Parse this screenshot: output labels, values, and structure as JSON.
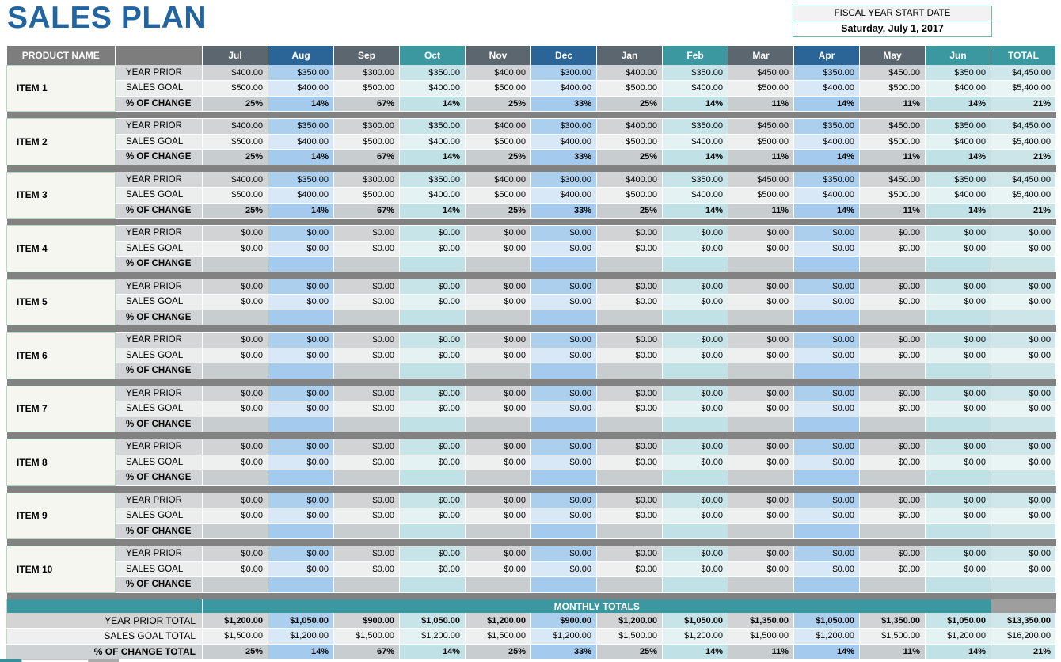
{
  "page": {
    "title": "SALES PLAN"
  },
  "fiscal": {
    "label": "FISCAL YEAR START DATE",
    "value": "Saturday, July 1, 2017"
  },
  "colors": {
    "title_blue": "#2164a0",
    "header_slate": "#5c666e",
    "header_blue": "#2b6496",
    "header_teal": "#3b98a1",
    "header_product_gray": "#7d7d7d",
    "separator_gray": "#828282",
    "band_teal": "#3b98a1",
    "fiscal_border_green": "#66bca9",
    "column_blue_tint": "#accfee",
    "column_cyan_tint": "#c7e4e9",
    "column_gray_tint": "#d1d3d5"
  },
  "table": {
    "product_header": "PRODUCT NAME",
    "row_labels": {
      "year_prior": "YEAR PRIOR",
      "sales_goal": "SALES GOAL",
      "pct_change": "% OF CHANGE"
    },
    "columns": [
      {
        "label": "Jul",
        "family": "gray"
      },
      {
        "label": "Aug",
        "family": "blue"
      },
      {
        "label": "Sep",
        "family": "gray"
      },
      {
        "label": "Oct",
        "family": "cyan"
      },
      {
        "label": "Nov",
        "family": "gray"
      },
      {
        "label": "Dec",
        "family": "blue"
      },
      {
        "label": "Jan",
        "family": "gray"
      },
      {
        "label": "Feb",
        "family": "cyan"
      },
      {
        "label": "Mar",
        "family": "gray"
      },
      {
        "label": "Apr",
        "family": "blue"
      },
      {
        "label": "May",
        "family": "gray"
      },
      {
        "label": "Jun",
        "family": "cyan"
      },
      {
        "label": "TOTAL",
        "family": "total"
      }
    ],
    "items": [
      {
        "name": "ITEM 1",
        "year_prior": [
          "$400.00",
          "$350.00",
          "$300.00",
          "$350.00",
          "$400.00",
          "$300.00",
          "$400.00",
          "$350.00",
          "$450.00",
          "$350.00",
          "$450.00",
          "$350.00",
          "$4,450.00"
        ],
        "sales_goal": [
          "$500.00",
          "$400.00",
          "$500.00",
          "$400.00",
          "$500.00",
          "$400.00",
          "$500.00",
          "$400.00",
          "$500.00",
          "$400.00",
          "$500.00",
          "$400.00",
          "$5,400.00"
        ],
        "pct_change": [
          "25%",
          "14%",
          "67%",
          "14%",
          "25%",
          "33%",
          "25%",
          "14%",
          "11%",
          "14%",
          "11%",
          "14%",
          "21%"
        ]
      },
      {
        "name": "ITEM 2",
        "year_prior": [
          "$400.00",
          "$350.00",
          "$300.00",
          "$350.00",
          "$400.00",
          "$300.00",
          "$400.00",
          "$350.00",
          "$450.00",
          "$350.00",
          "$450.00",
          "$350.00",
          "$4,450.00"
        ],
        "sales_goal": [
          "$500.00",
          "$400.00",
          "$500.00",
          "$400.00",
          "$500.00",
          "$400.00",
          "$500.00",
          "$400.00",
          "$500.00",
          "$400.00",
          "$500.00",
          "$400.00",
          "$5,400.00"
        ],
        "pct_change": [
          "25%",
          "14%",
          "67%",
          "14%",
          "25%",
          "33%",
          "25%",
          "14%",
          "11%",
          "14%",
          "11%",
          "14%",
          "21%"
        ]
      },
      {
        "name": "ITEM 3",
        "year_prior": [
          "$400.00",
          "$350.00",
          "$300.00",
          "$350.00",
          "$400.00",
          "$300.00",
          "$400.00",
          "$350.00",
          "$450.00",
          "$350.00",
          "$450.00",
          "$350.00",
          "$4,450.00"
        ],
        "sales_goal": [
          "$500.00",
          "$400.00",
          "$500.00",
          "$400.00",
          "$500.00",
          "$400.00",
          "$500.00",
          "$400.00",
          "$500.00",
          "$400.00",
          "$500.00",
          "$400.00",
          "$5,400.00"
        ],
        "pct_change": [
          "25%",
          "14%",
          "67%",
          "14%",
          "25%",
          "33%",
          "25%",
          "14%",
          "11%",
          "14%",
          "11%",
          "14%",
          "21%"
        ]
      },
      {
        "name": "ITEM 4",
        "year_prior": [
          "$0.00",
          "$0.00",
          "$0.00",
          "$0.00",
          "$0.00",
          "$0.00",
          "$0.00",
          "$0.00",
          "$0.00",
          "$0.00",
          "$0.00",
          "$0.00",
          "$0.00"
        ],
        "sales_goal": [
          "$0.00",
          "$0.00",
          "$0.00",
          "$0.00",
          "$0.00",
          "$0.00",
          "$0.00",
          "$0.00",
          "$0.00",
          "$0.00",
          "$0.00",
          "$0.00",
          "$0.00"
        ],
        "pct_change": [
          "",
          "",
          "",
          "",
          "",
          "",
          "",
          "",
          "",
          "",
          "",
          "",
          ""
        ]
      },
      {
        "name": "ITEM 5",
        "year_prior": [
          "$0.00",
          "$0.00",
          "$0.00",
          "$0.00",
          "$0.00",
          "$0.00",
          "$0.00",
          "$0.00",
          "$0.00",
          "$0.00",
          "$0.00",
          "$0.00",
          "$0.00"
        ],
        "sales_goal": [
          "$0.00",
          "$0.00",
          "$0.00",
          "$0.00",
          "$0.00",
          "$0.00",
          "$0.00",
          "$0.00",
          "$0.00",
          "$0.00",
          "$0.00",
          "$0.00",
          "$0.00"
        ],
        "pct_change": [
          "",
          "",
          "",
          "",
          "",
          "",
          "",
          "",
          "",
          "",
          "",
          "",
          ""
        ]
      },
      {
        "name": "ITEM 6",
        "year_prior": [
          "$0.00",
          "$0.00",
          "$0.00",
          "$0.00",
          "$0.00",
          "$0.00",
          "$0.00",
          "$0.00",
          "$0.00",
          "$0.00",
          "$0.00",
          "$0.00",
          "$0.00"
        ],
        "sales_goal": [
          "$0.00",
          "$0.00",
          "$0.00",
          "$0.00",
          "$0.00",
          "$0.00",
          "$0.00",
          "$0.00",
          "$0.00",
          "$0.00",
          "$0.00",
          "$0.00",
          "$0.00"
        ],
        "pct_change": [
          "",
          "",
          "",
          "",
          "",
          "",
          "",
          "",
          "",
          "",
          "",
          "",
          ""
        ]
      },
      {
        "name": "ITEM 7",
        "year_prior": [
          "$0.00",
          "$0.00",
          "$0.00",
          "$0.00",
          "$0.00",
          "$0.00",
          "$0.00",
          "$0.00",
          "$0.00",
          "$0.00",
          "$0.00",
          "$0.00",
          "$0.00"
        ],
        "sales_goal": [
          "$0.00",
          "$0.00",
          "$0.00",
          "$0.00",
          "$0.00",
          "$0.00",
          "$0.00",
          "$0.00",
          "$0.00",
          "$0.00",
          "$0.00",
          "$0.00",
          "$0.00"
        ],
        "pct_change": [
          "",
          "",
          "",
          "",
          "",
          "",
          "",
          "",
          "",
          "",
          "",
          "",
          ""
        ]
      },
      {
        "name": "ITEM 8",
        "year_prior": [
          "$0.00",
          "$0.00",
          "$0.00",
          "$0.00",
          "$0.00",
          "$0.00",
          "$0.00",
          "$0.00",
          "$0.00",
          "$0.00",
          "$0.00",
          "$0.00",
          "$0.00"
        ],
        "sales_goal": [
          "$0.00",
          "$0.00",
          "$0.00",
          "$0.00",
          "$0.00",
          "$0.00",
          "$0.00",
          "$0.00",
          "$0.00",
          "$0.00",
          "$0.00",
          "$0.00",
          "$0.00"
        ],
        "pct_change": [
          "",
          "",
          "",
          "",
          "",
          "",
          "",
          "",
          "",
          "",
          "",
          "",
          ""
        ]
      },
      {
        "name": "ITEM 9",
        "year_prior": [
          "$0.00",
          "$0.00",
          "$0.00",
          "$0.00",
          "$0.00",
          "$0.00",
          "$0.00",
          "$0.00",
          "$0.00",
          "$0.00",
          "$0.00",
          "$0.00",
          "$0.00"
        ],
        "sales_goal": [
          "$0.00",
          "$0.00",
          "$0.00",
          "$0.00",
          "$0.00",
          "$0.00",
          "$0.00",
          "$0.00",
          "$0.00",
          "$0.00",
          "$0.00",
          "$0.00",
          "$0.00"
        ],
        "pct_change": [
          "",
          "",
          "",
          "",
          "",
          "",
          "",
          "",
          "",
          "",
          "",
          "",
          ""
        ]
      },
      {
        "name": "ITEM 10",
        "year_prior": [
          "$0.00",
          "$0.00",
          "$0.00",
          "$0.00",
          "$0.00",
          "$0.00",
          "$0.00",
          "$0.00",
          "$0.00",
          "$0.00",
          "$0.00",
          "$0.00",
          "$0.00"
        ],
        "sales_goal": [
          "$0.00",
          "$0.00",
          "$0.00",
          "$0.00",
          "$0.00",
          "$0.00",
          "$0.00",
          "$0.00",
          "$0.00",
          "$0.00",
          "$0.00",
          "$0.00",
          "$0.00"
        ],
        "pct_change": [
          "",
          "",
          "",
          "",
          "",
          "",
          "",
          "",
          "",
          "",
          "",
          "",
          ""
        ]
      }
    ],
    "monthly_totals": {
      "band_label": "MONTHLY TOTALS",
      "rows": [
        {
          "key": "prior",
          "label": "YEAR PRIOR TOTAL",
          "bold": true,
          "values": [
            "$1,200.00",
            "$1,050.00",
            "$900.00",
            "$1,050.00",
            "$1,200.00",
            "$900.00",
            "$1,200.00",
            "$1,050.00",
            "$1,350.00",
            "$1,050.00",
            "$1,350.00",
            "$1,050.00",
            "$13,350.00"
          ]
        },
        {
          "key": "goal",
          "label": "SALES GOAL TOTAL",
          "bold": false,
          "values": [
            "$1,500.00",
            "$1,200.00",
            "$1,500.00",
            "$1,200.00",
            "$1,500.00",
            "$1,200.00",
            "$1,500.00",
            "$1,200.00",
            "$1,500.00",
            "$1,200.00",
            "$1,500.00",
            "$1,200.00",
            "$16,200.00"
          ]
        },
        {
          "key": "pct",
          "label": "% OF CHANGE TOTAL",
          "bold": true,
          "values": [
            "25%",
            "14%",
            "67%",
            "14%",
            "25%",
            "33%",
            "25%",
            "14%",
            "11%",
            "14%",
            "11%",
            "14%",
            "21%"
          ]
        }
      ]
    }
  }
}
